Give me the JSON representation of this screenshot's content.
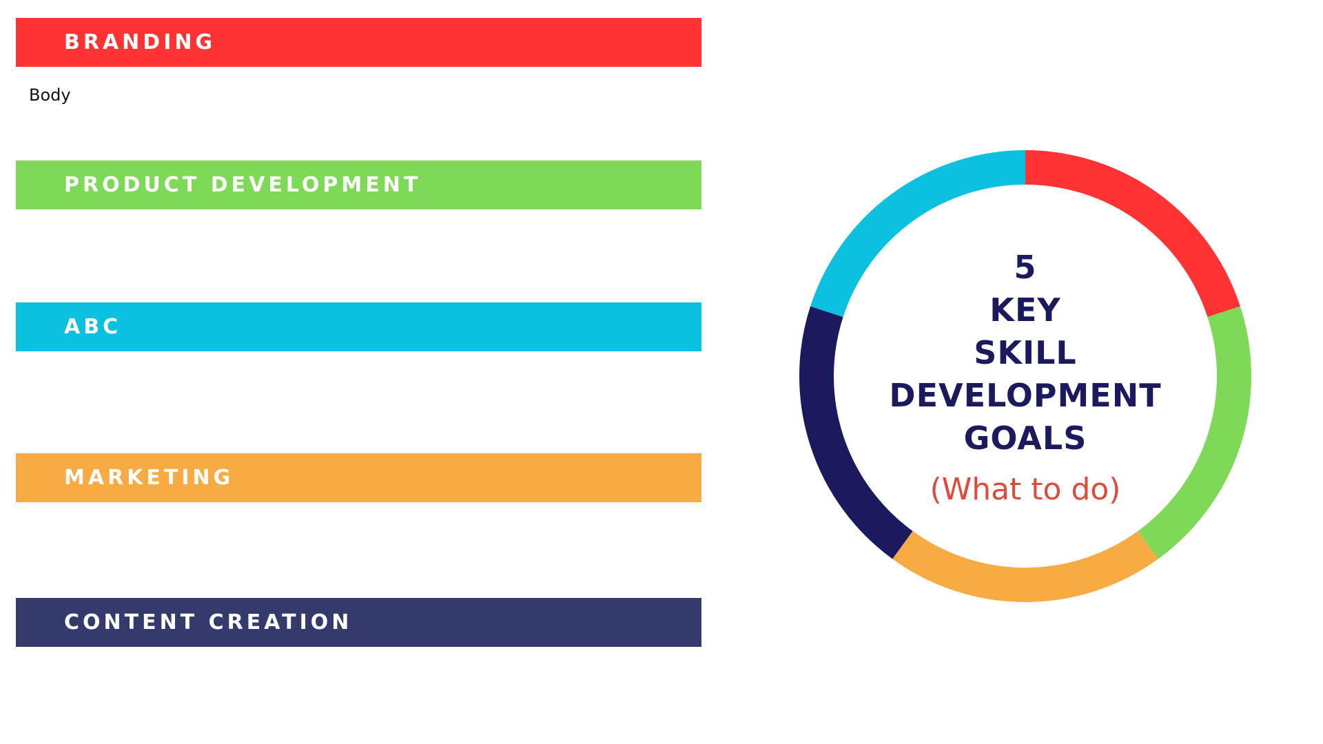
{
  "bars": [
    {
      "label": "BRANDING",
      "color": "#ff3334"
    },
    {
      "label": "PRODUCT DEVELOPMENT",
      "color": "#7ed957"
    },
    {
      "label": "ABC",
      "color": "#0cc0df"
    },
    {
      "label": "MARKETING",
      "color": "#f8aa43"
    },
    {
      "label": "CONTENT CREATION",
      "color": "#343b6c"
    }
  ],
  "body_text": "Body",
  "center": {
    "lines": [
      "5",
      "KEY",
      "SKILL",
      "DEVELOPMENT",
      "GOALS"
    ],
    "subtitle": "(What to do)",
    "title_color": "#1b1a5e",
    "subtitle_color": "#e04a3a"
  },
  "ring": {
    "segments": [
      {
        "name": "red",
        "color": "#ff3334",
        "fraction": 0.2
      },
      {
        "name": "green",
        "color": "#7ed957",
        "fraction": 0.2
      },
      {
        "name": "orange",
        "color": "#f8aa43",
        "fraction": 0.2
      },
      {
        "name": "navy",
        "color": "#1b1a5e",
        "fraction": 0.2
      },
      {
        "name": "cyan",
        "color": "#0cc0df",
        "fraction": 0.2
      }
    ]
  }
}
